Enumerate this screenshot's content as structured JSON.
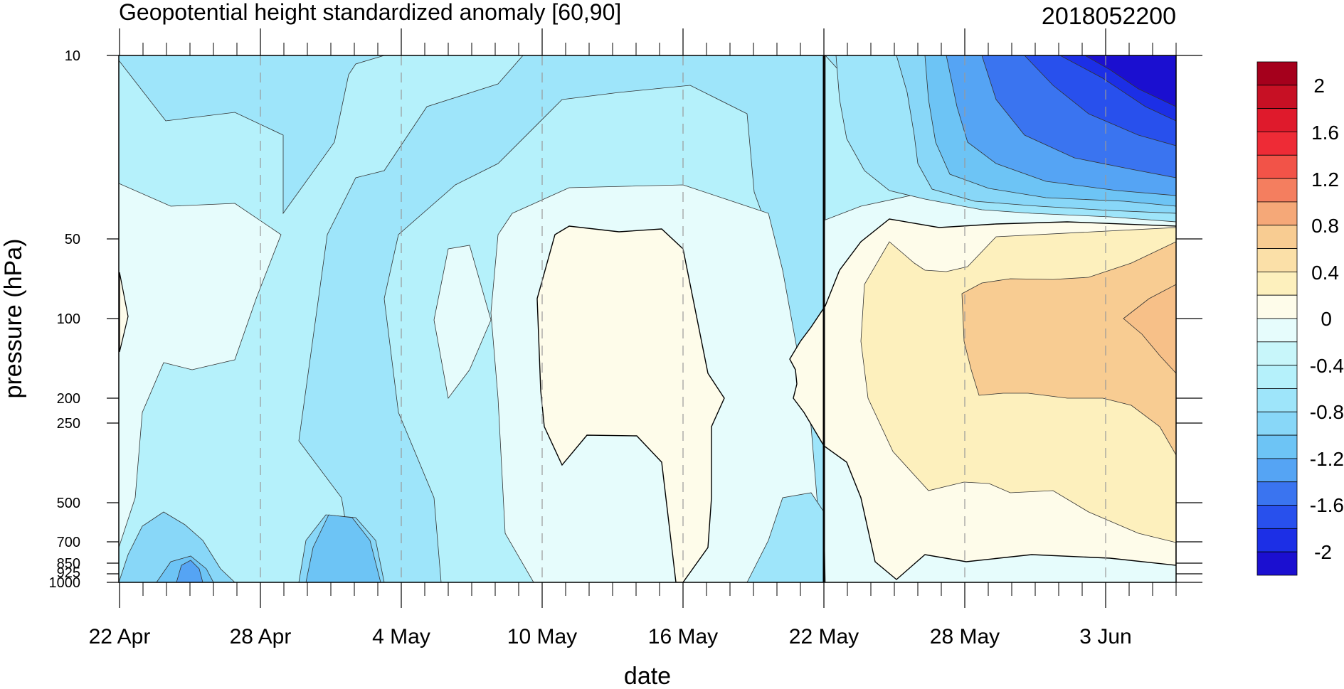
{
  "chart_data": {
    "type": "heatmap",
    "title": "Geopotential height standardized anomaly [60,90]",
    "run_label": "2018052200",
    "xlabel": "date",
    "ylabel": "pressure (hPa)",
    "x_ticks": [
      "22 Apr",
      "28 Apr",
      "4 May",
      "10 May",
      "16 May",
      "22 May",
      "28 May",
      "3 Jun"
    ],
    "y_ticks": [
      "10",
      "50",
      "100",
      "200",
      "250",
      "500",
      "700",
      "850",
      "925",
      "1000"
    ],
    "y_scale": "log",
    "ylim": [
      1000,
      10
    ],
    "x_range": [
      "2018-04-22",
      "2018-06-06"
    ],
    "vline": "2018-05-22",
    "legend_position": "right",
    "colorbar": {
      "labels": [
        "2",
        "1.6",
        "1.2",
        "0.8",
        "0.4",
        "0",
        "-0.4",
        "-0.8",
        "-1.2",
        "-1.6",
        "-2"
      ],
      "levels": [
        -2.2,
        -2.0,
        -1.8,
        -1.6,
        -1.4,
        -1.2,
        -1.0,
        -0.8,
        -0.6,
        -0.4,
        -0.2,
        0.0,
        0.2,
        0.4,
        0.6,
        0.8,
        1.0,
        1.2,
        1.4,
        1.6,
        1.8,
        2.0,
        2.2
      ],
      "colors": [
        "#1b0fd0",
        "#1c2fe6",
        "#2850ed",
        "#3a74f0",
        "#55a4f4",
        "#6dc4f5",
        "#88d7f8",
        "#9ee5fa",
        "#b5f1fb",
        "#c8f6fa",
        "#e6fcfc",
        "#fefcea",
        "#fdf0bd",
        "#fbe0a8",
        "#f8cc92",
        "#f5a878",
        "#f47e5f",
        "#f25348",
        "#ee2b36",
        "#df1a2c",
        "#c71024",
        "#a5001c"
      ]
    },
    "regions": [
      {
        "name": "minus-0.2-to-0-west",
        "value": -0.1
      },
      {
        "name": "minus-0.4-to-minus-0.2",
        "value": -0.3
      },
      {
        "name": "minus-0.6-to-minus-0.4",
        "value": -0.5
      },
      {
        "name": "minus-0.8-to-minus-0.6",
        "value": -0.7
      },
      {
        "name": "minus-1.0-to-minus-0.8",
        "value": -0.9
      },
      {
        "name": "positive-0-to-0.2-mid",
        "value": 0.1
      },
      {
        "name": "positive-0-to-0.2-east",
        "value": 0.1
      },
      {
        "name": "positive-0.2-to-0.4-east",
        "value": 0.3
      },
      {
        "name": "positive-0.4-to-0.6-east",
        "value": 0.5
      },
      {
        "name": "negative-upper-east",
        "value": -2.1
      }
    ]
  }
}
